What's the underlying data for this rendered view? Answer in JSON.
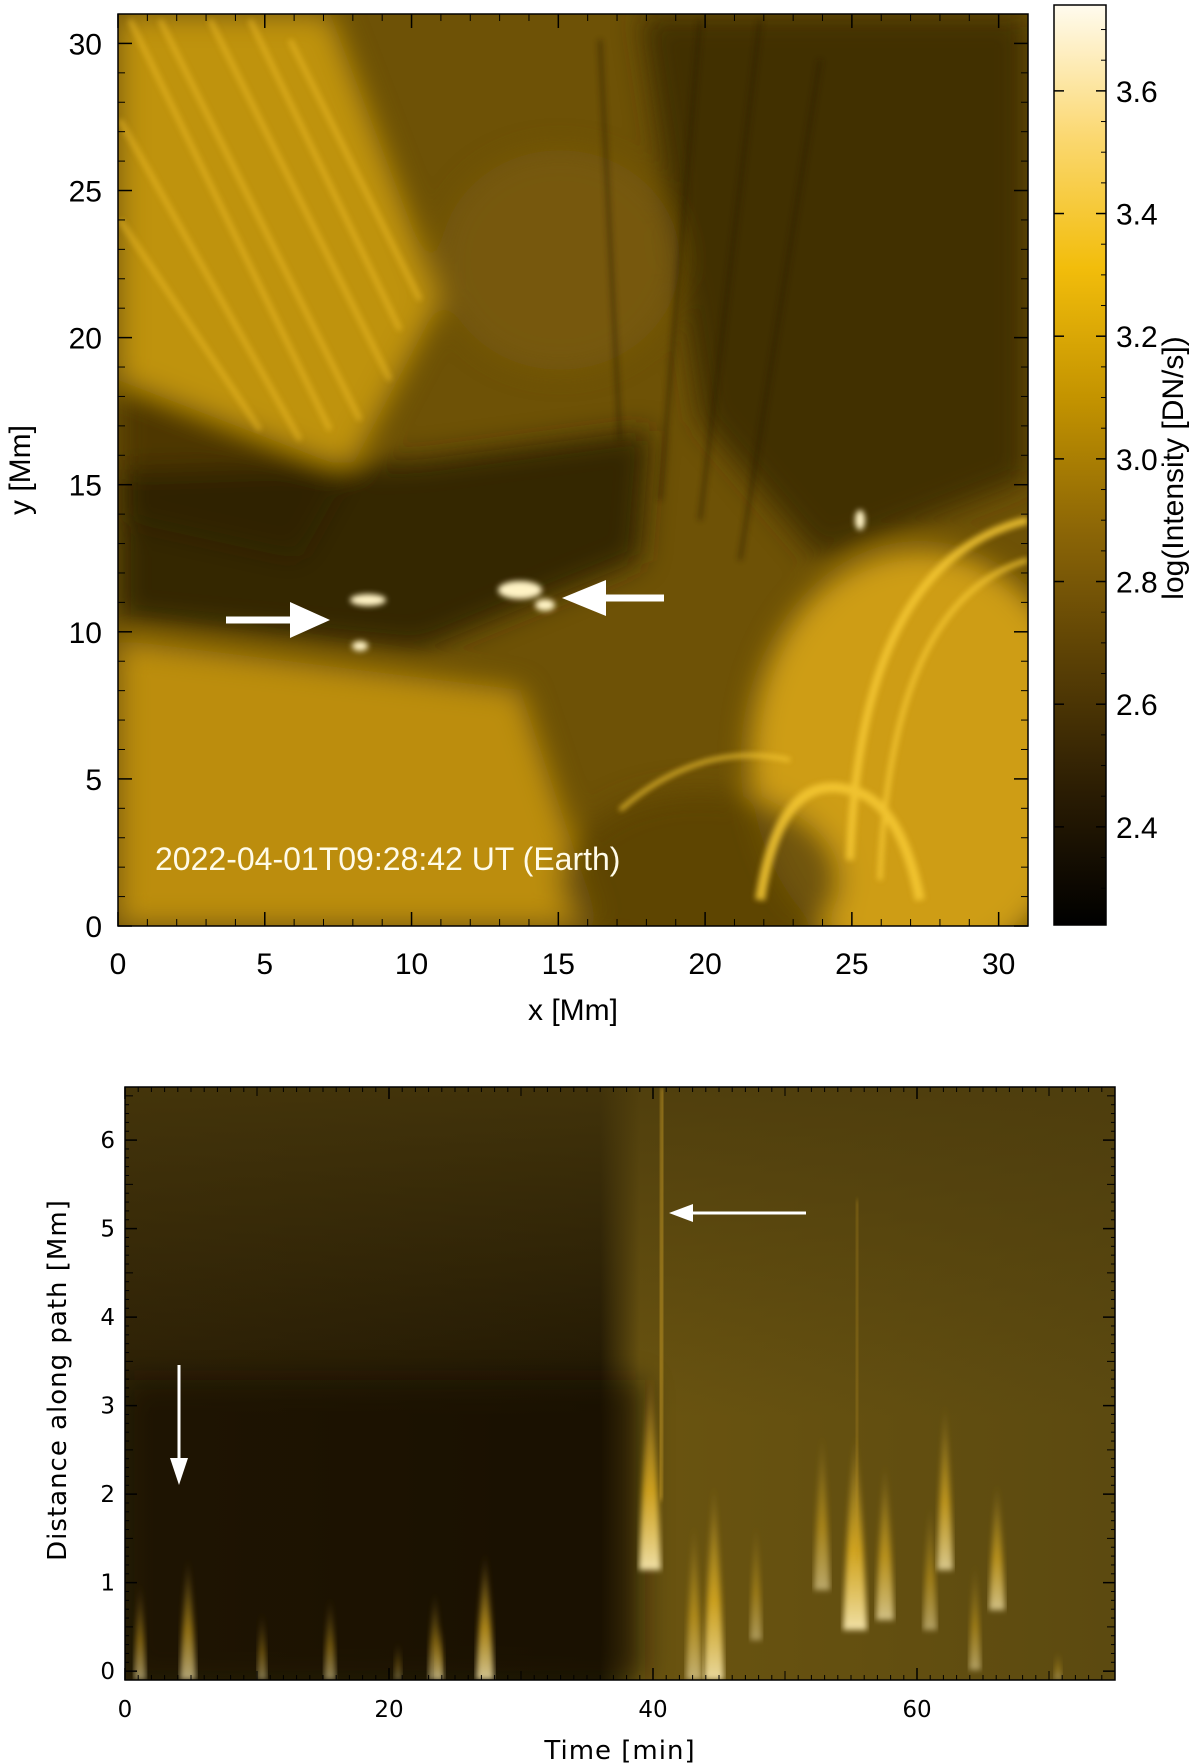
{
  "top_panel": {
    "xlabel": "x [Mm]",
    "ylabel": "y [Mm]",
    "x_ticks": [
      "0",
      "5",
      "10",
      "15",
      "20",
      "25",
      "30"
    ],
    "y_ticks": [
      "0",
      "5",
      "10",
      "15",
      "20",
      "25",
      "30"
    ],
    "xlim": [
      0,
      31
    ],
    "ylim": [
      0,
      31
    ],
    "timestamp": "2022-04-01T09:28:42 UT (Earth)",
    "colormap_colors": [
      "#000000",
      "#2a1c03",
      "#5a4005",
      "#8c6606",
      "#c39300",
      "#f2bd0b",
      "#fbd871",
      "#fffbee"
    ],
    "arrows": [
      "right-pointing-arrow",
      "left-pointing-arrow"
    ]
  },
  "colorbar": {
    "label": "log(Intensity [DN/s])",
    "ticks": [
      "2.4",
      "2.6",
      "2.8",
      "3.0",
      "3.2",
      "3.4",
      "3.6"
    ],
    "tick_values": [
      2.4,
      2.6,
      2.8,
      3.0,
      3.2,
      3.4,
      3.6
    ],
    "range": [
      2.24,
      3.74
    ]
  },
  "bottom_panel": {
    "xlabel": "Time [min]",
    "ylabel": "Distance along path [Mm]",
    "x_ticks": [
      "0",
      "20",
      "40",
      "60"
    ],
    "y_ticks": [
      "0",
      "1",
      "2",
      "3",
      "4",
      "5",
      "6"
    ],
    "xlim": [
      0,
      75
    ],
    "ylim": [
      -0.1,
      6.6
    ],
    "arrows": [
      "down-pointing-arrow",
      "left-pointing-arrow"
    ]
  }
}
